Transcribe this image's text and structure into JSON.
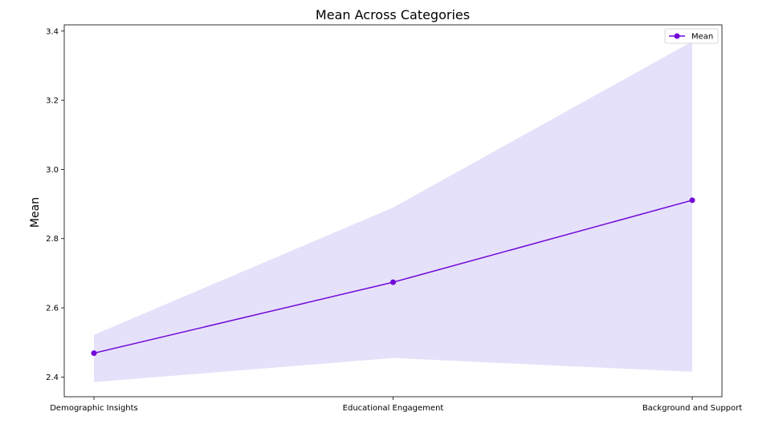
{
  "chart_data": {
    "type": "line",
    "title": "Mean Across Categories",
    "xlabel": "",
    "ylabel": "Mean",
    "categories": [
      "Demographic Insights",
      "Educational Engagement",
      "Background and Support"
    ],
    "series": [
      {
        "name": "Mean",
        "values": [
          2.469,
          2.674,
          2.911
        ],
        "band_lower": [
          2.385,
          2.455,
          2.415
        ],
        "band_upper": [
          2.522,
          2.89,
          3.37
        ]
      }
    ],
    "ylim": [
      2.343,
      3.418
    ],
    "yticks": [
      2.4,
      2.6,
      2.8,
      3.0,
      3.2,
      3.4
    ],
    "grid": false,
    "legend_position": "top-right",
    "colors": {
      "line": "#7209d9",
      "band": "#e6e1fa",
      "axis": "#000000"
    }
  }
}
